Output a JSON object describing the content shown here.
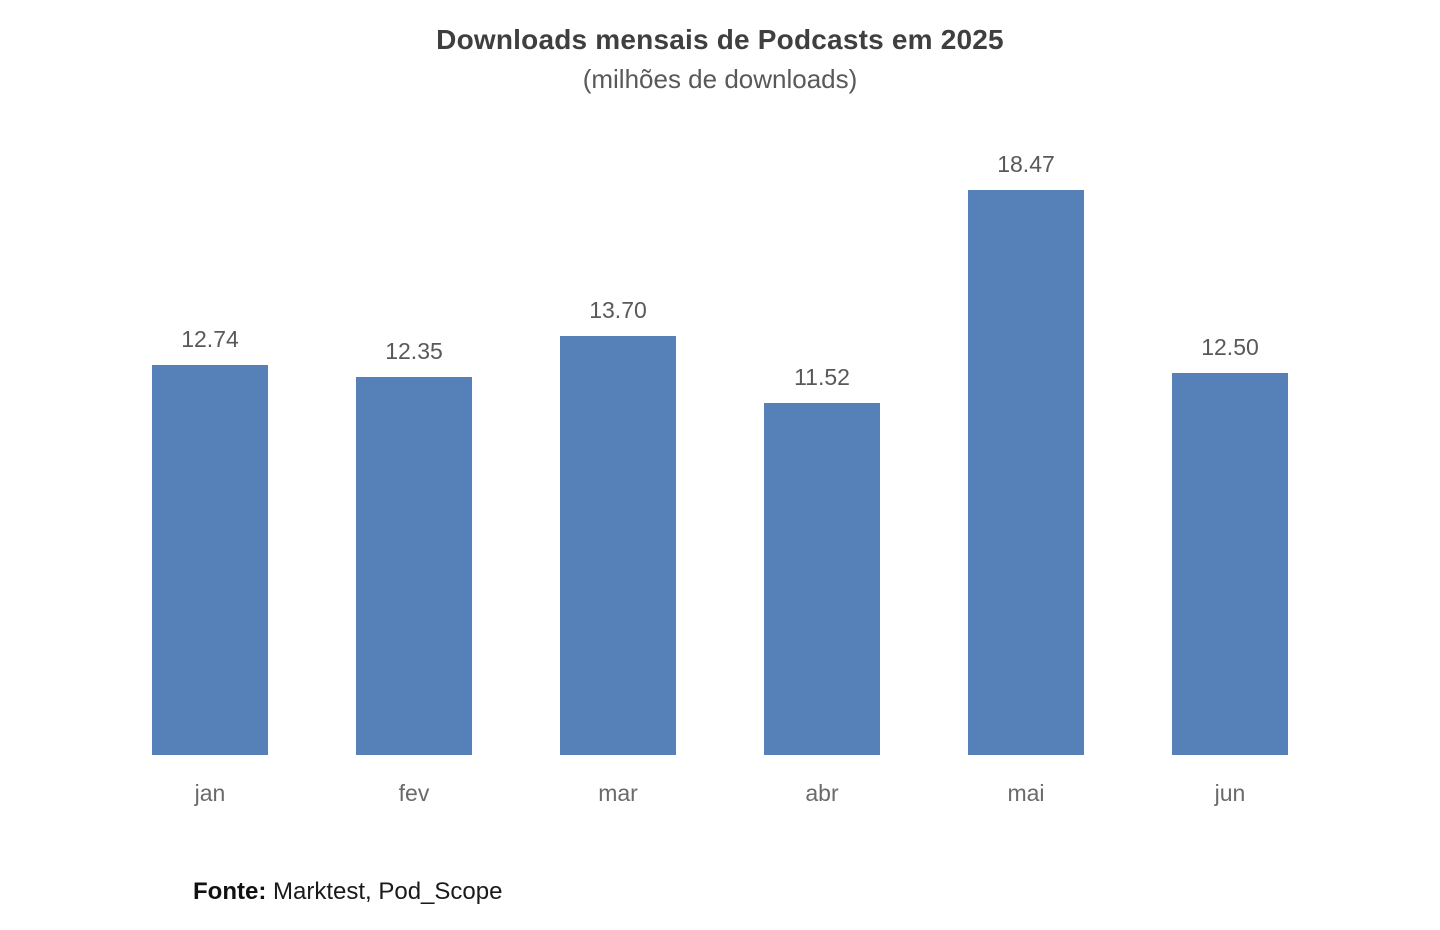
{
  "chart_data": {
    "type": "bar",
    "title": "Downloads mensais de Podcasts em 2025",
    "subtitle": "(milhões de downloads)",
    "categories": [
      "jan",
      "fev",
      "mar",
      "abr",
      "mai",
      "jun"
    ],
    "values": [
      12.74,
      12.35,
      13.7,
      11.52,
      18.47,
      12.5
    ],
    "value_labels": [
      "12.74",
      "12.35",
      "13.70",
      "11.52",
      "18.47",
      "12.50"
    ],
    "xlabel": "",
    "ylabel": "",
    "ylim": [
      0,
      20.1
    ],
    "grid": false,
    "legend": false,
    "axis_lines": false,
    "bar_color": "#5681b8",
    "value_label_color": "#595959",
    "axis_label_color": "#6a6a6a",
    "title_color": "#3f3f3f"
  },
  "footer": {
    "source_prefix": "Fonte:",
    "source_text": " Marktest, Pod_Scope"
  }
}
